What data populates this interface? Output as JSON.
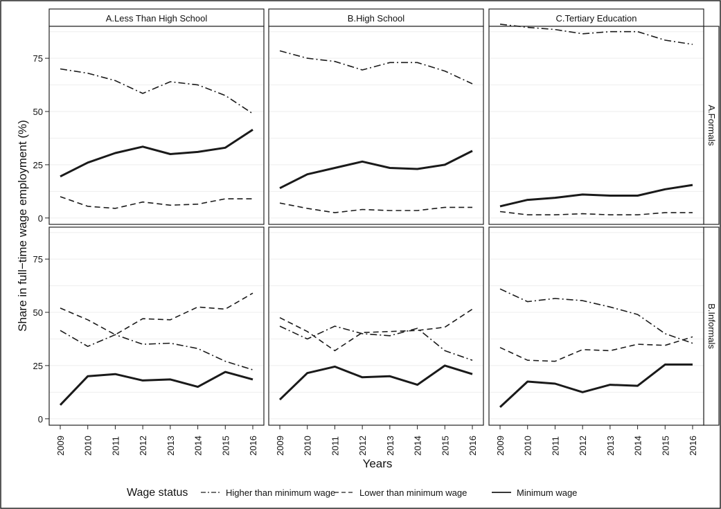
{
  "chart_data": {
    "type": "line",
    "ylabel": "Share in full−time wage employment (%)",
    "xlabel": "Years",
    "column_titles": [
      "A.Less Than High School",
      "B.High School",
      "C.Tertiary Education"
    ],
    "row_titles": [
      "A.Formals",
      "B.Informals"
    ],
    "x": [
      "2009",
      "2010",
      "2011",
      "2012",
      "2013",
      "2014",
      "2015",
      "2016"
    ],
    "y_ticks": [
      "0",
      "25",
      "50",
      "75"
    ],
    "ylim": [
      -3,
      90
    ],
    "grid": true,
    "legend": {
      "title": "Wage status",
      "position": "bottom",
      "entries": [
        "Higher than minimum wage",
        "Lower than minimum wage",
        "Minimum wage"
      ]
    },
    "series_styles": {
      "Higher than minimum wage": "dash-dot",
      "Lower than minimum wage": "dashed",
      "Minimum wage": "solid"
    },
    "panels": [
      {
        "row": "A.Formals",
        "column": "A.Less Than High School",
        "series": [
          {
            "name": "Higher than minimum wage",
            "values": [
              70,
              68,
              64.5,
              58.5,
              64,
              62.5,
              57.5,
              49
            ]
          },
          {
            "name": "Lower than minimum wage",
            "values": [
              10,
              5.5,
              4.5,
              7.5,
              6,
              6.5,
              9,
              9
            ]
          },
          {
            "name": "Minimum wage",
            "values": [
              19.5,
              26,
              30.5,
              33.5,
              30,
              31,
              33,
              41.5
            ]
          }
        ]
      },
      {
        "row": "A.Formals",
        "column": "B.High School",
        "series": [
          {
            "name": "Higher than minimum wage",
            "values": [
              78.5,
              75,
              73.5,
              69.5,
              73,
              73,
              69,
              63
            ]
          },
          {
            "name": "Lower than minimum wage",
            "values": [
              7,
              4.5,
              2.5,
              4,
              3.5,
              3.5,
              5,
              5
            ]
          },
          {
            "name": "Minimum wage",
            "values": [
              14,
              20.5,
              23.5,
              26.5,
              23.5,
              23,
              25,
              31.5
            ]
          }
        ]
      },
      {
        "row": "A.Formals",
        "column": "C.Tertiary Education",
        "series": [
          {
            "name": "Higher than minimum wage",
            "values": [
              91,
              89.5,
              88.5,
              86.5,
              87.5,
              87.5,
              83.5,
              81.5
            ]
          },
          {
            "name": "Lower than minimum wage",
            "values": [
              3,
              1.5,
              1.5,
              2,
              1.5,
              1.5,
              2.5,
              2.5
            ]
          },
          {
            "name": "Minimum wage",
            "values": [
              5.5,
              8.5,
              9.5,
              11,
              10.5,
              10.5,
              13.5,
              15.5
            ]
          }
        ]
      },
      {
        "row": "B.Informals",
        "column": "A.Less Than High School",
        "series": [
          {
            "name": "Higher than minimum wage",
            "values": [
              41.5,
              34,
              39.5,
              35,
              35.5,
              33,
              27,
              23
            ]
          },
          {
            "name": "Lower than minimum wage",
            "values": [
              52,
              46.5,
              39.5,
              47,
              46.5,
              52.5,
              51.5,
              59
            ]
          },
          {
            "name": "Minimum wage",
            "values": [
              6.5,
              20,
              21,
              18,
              18.5,
              15,
              22,
              18.5
            ]
          }
        ]
      },
      {
        "row": "B.Informals",
        "column": "B.High School",
        "series": [
          {
            "name": "Higher than minimum wage",
            "values": [
              43.5,
              37.5,
              43.5,
              40,
              39,
              42.5,
              32,
              27.5
            ]
          },
          {
            "name": "Lower than minimum wage",
            "values": [
              47.5,
              41,
              32,
              40.5,
              41,
              41.5,
              43,
              51.5
            ]
          },
          {
            "name": "Minimum wage",
            "values": [
              9,
              21.5,
              24.5,
              19.5,
              20,
              16,
              25,
              21
            ]
          }
        ]
      },
      {
        "row": "B.Informals",
        "column": "C.Tertiary Education",
        "series": [
          {
            "name": "Higher than minimum wage",
            "values": [
              61,
              55,
              56.5,
              55.5,
              52.5,
              49,
              40,
              35.5
            ]
          },
          {
            "name": "Lower than minimum wage",
            "values": [
              33.5,
              27.5,
              27,
              32.5,
              32,
              35,
              34.5,
              38.5
            ]
          },
          {
            "name": "Minimum wage",
            "values": [
              5.5,
              17.5,
              16.5,
              12.5,
              16,
              15.5,
              25.5,
              25.5
            ]
          }
        ]
      }
    ]
  }
}
